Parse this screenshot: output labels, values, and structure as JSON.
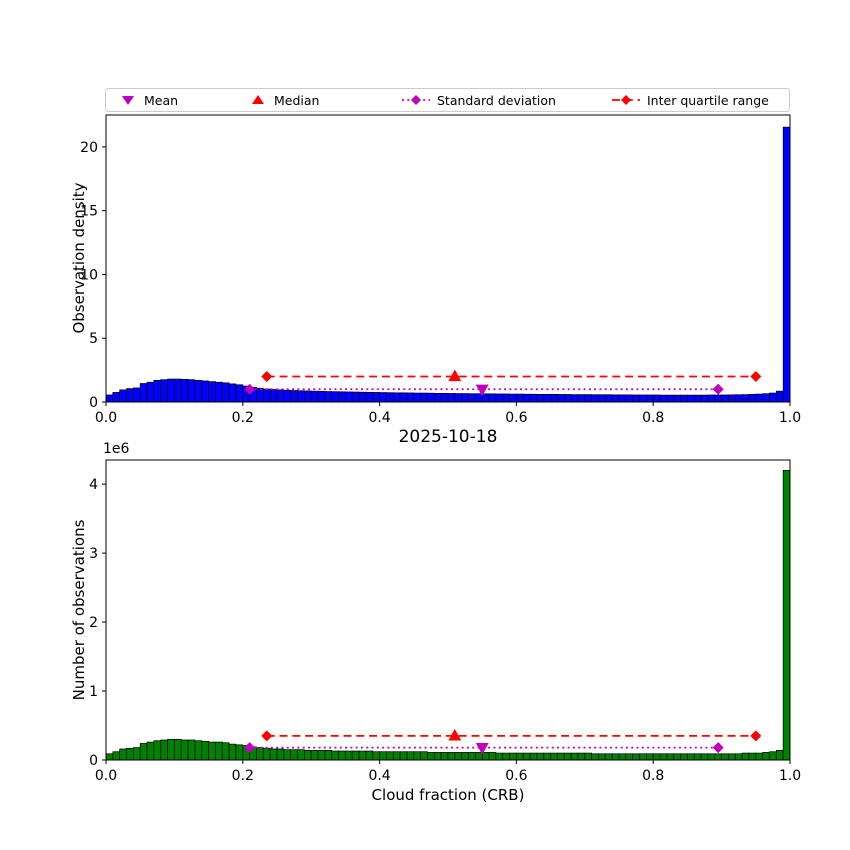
{
  "figure": {
    "background": "#ffffff"
  },
  "legend": {
    "items": [
      {
        "label": "Mean",
        "marker": "triangle-down",
        "color": "#bf00bf",
        "line": "none"
      },
      {
        "label": "Median",
        "marker": "triangle-up",
        "color": "#ff0000",
        "line": "none"
      },
      {
        "label": "Standard deviation",
        "marker": "diamond",
        "color": "#bf00bf",
        "line": "dotted"
      },
      {
        "label": "Inter quartile range",
        "marker": "diamond",
        "color": "#ff0000",
        "line": "dashed"
      }
    ]
  },
  "chart_data": [
    {
      "type": "bar",
      "subtype": "histogram",
      "title": "",
      "ylabel": "Observation density",
      "xlabel": "",
      "bar_color": "#0000ff",
      "bar_edge_color": "#000000",
      "bin_start": 0.0,
      "bin_width": 0.01,
      "xlim": [
        0.0,
        1.0
      ],
      "ylim": [
        0,
        22.5
      ],
      "xticks": [
        0.0,
        0.2,
        0.4,
        0.6,
        0.8,
        1.0
      ],
      "xtick_labels": [
        "0.0",
        "0.2",
        "0.4",
        "0.6",
        "0.8",
        "1.0"
      ],
      "yticks": [
        0,
        5,
        10,
        15,
        20
      ],
      "ytick_labels": [
        "0",
        "5",
        "10",
        "15",
        "20"
      ],
      "grid": false,
      "values": [
        0.55,
        0.75,
        0.95,
        1.05,
        1.1,
        1.45,
        1.55,
        1.7,
        1.75,
        1.8,
        1.8,
        1.78,
        1.75,
        1.7,
        1.65,
        1.6,
        1.55,
        1.5,
        1.42,
        1.35,
        1.25,
        1.15,
        1.08,
        1.02,
        0.98,
        0.95,
        0.92,
        0.9,
        0.88,
        0.87,
        0.85,
        0.84,
        0.82,
        0.81,
        0.8,
        0.79,
        0.78,
        0.77,
        0.76,
        0.75,
        0.74,
        0.73,
        0.72,
        0.72,
        0.71,
        0.7,
        0.7,
        0.69,
        0.68,
        0.68,
        0.67,
        0.66,
        0.66,
        0.65,
        0.65,
        0.64,
        0.64,
        0.63,
        0.63,
        0.62,
        0.62,
        0.61,
        0.61,
        0.6,
        0.6,
        0.6,
        0.59,
        0.59,
        0.58,
        0.58,
        0.58,
        0.57,
        0.57,
        0.57,
        0.56,
        0.56,
        0.56,
        0.55,
        0.55,
        0.55,
        0.55,
        0.54,
        0.54,
        0.54,
        0.54,
        0.54,
        0.54,
        0.54,
        0.55,
        0.55,
        0.55,
        0.56,
        0.57,
        0.58,
        0.6,
        0.62,
        0.65,
        0.7,
        0.85,
        21.55
      ],
      "annotations": [
        {
          "name": "iqr",
          "type": "hline-range",
          "x1": 0.235,
          "x2": 0.95,
          "y": 2.0,
          "color": "#ff0000",
          "style": "dashed",
          "marker": "diamond"
        },
        {
          "name": "std",
          "type": "hline-range",
          "x1": 0.21,
          "x2": 0.895,
          "y": 1.0,
          "color": "#bf00bf",
          "style": "dotted",
          "marker": "diamond"
        },
        {
          "name": "median",
          "type": "point",
          "x": 0.51,
          "y": 2.0,
          "color": "#ff0000",
          "marker": "triangle-up"
        },
        {
          "name": "mean",
          "type": "point",
          "x": 0.55,
          "y": 1.0,
          "color": "#bf00bf",
          "marker": "triangle-down"
        }
      ]
    },
    {
      "type": "bar",
      "subtype": "histogram",
      "title": "2025-10-18",
      "ylabel": "Number of observations",
      "xlabel": "Cloud fraction (CRB)",
      "offset_text": "1e6",
      "bar_color": "#008000",
      "bar_edge_color": "#000000",
      "bin_start": 0.0,
      "bin_width": 0.01,
      "xlim": [
        0.0,
        1.0
      ],
      "ylim": [
        0,
        4.35
      ],
      "xticks": [
        0.0,
        0.2,
        0.4,
        0.6,
        0.8,
        1.0
      ],
      "xtick_labels": [
        "0.0",
        "0.2",
        "0.4",
        "0.6",
        "0.8",
        "1.0"
      ],
      "yticks": [
        0,
        1,
        2,
        3,
        4
      ],
      "ytick_labels": [
        "0",
        "1",
        "2",
        "3",
        "4"
      ],
      "y_unit_multiplier": 1000000,
      "grid": false,
      "values": [
        0.09,
        0.12,
        0.16,
        0.17,
        0.18,
        0.24,
        0.26,
        0.28,
        0.29,
        0.3,
        0.3,
        0.29,
        0.29,
        0.28,
        0.27,
        0.26,
        0.26,
        0.25,
        0.23,
        0.22,
        0.21,
        0.19,
        0.18,
        0.17,
        0.16,
        0.16,
        0.15,
        0.15,
        0.15,
        0.14,
        0.14,
        0.14,
        0.14,
        0.13,
        0.13,
        0.13,
        0.13,
        0.13,
        0.13,
        0.12,
        0.12,
        0.12,
        0.12,
        0.12,
        0.12,
        0.12,
        0.12,
        0.11,
        0.11,
        0.11,
        0.11,
        0.11,
        0.11,
        0.11,
        0.11,
        0.11,
        0.11,
        0.1,
        0.1,
        0.1,
        0.1,
        0.1,
        0.1,
        0.1,
        0.1,
        0.1,
        0.1,
        0.1,
        0.1,
        0.1,
        0.1,
        0.09,
        0.09,
        0.09,
        0.09,
        0.09,
        0.09,
        0.09,
        0.09,
        0.09,
        0.09,
        0.09,
        0.09,
        0.09,
        0.09,
        0.09,
        0.09,
        0.09,
        0.09,
        0.09,
        0.09,
        0.09,
        0.09,
        0.1,
        0.1,
        0.1,
        0.11,
        0.12,
        0.14,
        4.2
      ],
      "annotations": [
        {
          "name": "iqr",
          "type": "hline-range",
          "x1": 0.235,
          "x2": 0.95,
          "y": 0.35,
          "color": "#ff0000",
          "style": "dashed",
          "marker": "diamond"
        },
        {
          "name": "std",
          "type": "hline-range",
          "x1": 0.21,
          "x2": 0.895,
          "y": 0.18,
          "color": "#bf00bf",
          "style": "dotted",
          "marker": "diamond"
        },
        {
          "name": "median",
          "type": "point",
          "x": 0.51,
          "y": 0.35,
          "color": "#ff0000",
          "marker": "triangle-up"
        },
        {
          "name": "mean",
          "type": "point",
          "x": 0.55,
          "y": 0.18,
          "color": "#bf00bf",
          "marker": "triangle-down"
        }
      ]
    }
  ]
}
